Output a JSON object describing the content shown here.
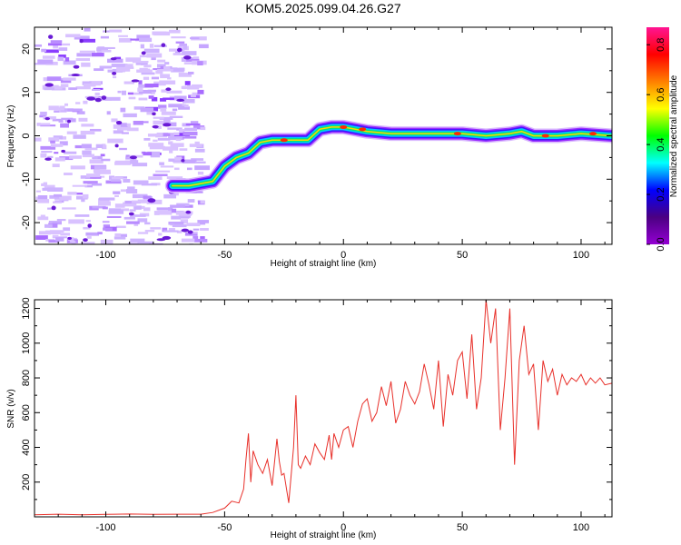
{
  "title": "KOM5.2025.099.04.26.G27",
  "chart_data": [
    {
      "type": "heatmap",
      "xlabel": "Height of straight line (km)",
      "ylabel": "Frequency (Hz)",
      "xlim": [
        -130,
        113
      ],
      "ylim": [
        -25,
        25
      ],
      "xticks": [
        -100,
        -50,
        0,
        50,
        100
      ],
      "yticks": [
        -20,
        -10,
        0,
        10,
        20
      ],
      "grid": false,
      "colorbar": {
        "label": "Normalized spectral amplitude",
        "range": [
          0,
          0.87
        ],
        "ticks": [
          0.0,
          0.2,
          0.4,
          0.6,
          0.8
        ],
        "colormap": [
          "#9400d3",
          "#4b0082",
          "#0000ff",
          "#00ffff",
          "#00ff00",
          "#ffff00",
          "#ff7f00",
          "#ff0000",
          "#ff1493"
        ]
      },
      "ridge": {
        "points": [
          {
            "x": -72,
            "y": -11.5
          },
          {
            "x": -65,
            "y": -11.5
          },
          {
            "x": -60,
            "y": -11
          },
          {
            "x": -55,
            "y": -10.5
          },
          {
            "x": -50,
            "y": -7
          },
          {
            "x": -45,
            "y": -5
          },
          {
            "x": -40,
            "y": -4
          },
          {
            "x": -35,
            "y": -1.5
          },
          {
            "x": -30,
            "y": -1
          },
          {
            "x": -25,
            "y": -1
          },
          {
            "x": -20,
            "y": -1
          },
          {
            "x": -15,
            "y": -1
          },
          {
            "x": -10,
            "y": 1.5
          },
          {
            "x": -5,
            "y": 2
          },
          {
            "x": 0,
            "y": 2
          },
          {
            "x": 5,
            "y": 1.5
          },
          {
            "x": 10,
            "y": 1
          },
          {
            "x": 20,
            "y": 0.5
          },
          {
            "x": 30,
            "y": 0.5
          },
          {
            "x": 40,
            "y": 0.5
          },
          {
            "x": 50,
            "y": 0.5
          },
          {
            "x": 60,
            "y": 0
          },
          {
            "x": 70,
            "y": 0.5
          },
          {
            "x": 75,
            "y": 1
          },
          {
            "x": 80,
            "y": 0
          },
          {
            "x": 90,
            "y": 0
          },
          {
            "x": 100,
            "y": 0.5
          },
          {
            "x": 113,
            "y": 0
          }
        ]
      }
    },
    {
      "type": "line",
      "xlabel": "Height of straight line (km)",
      "ylabel": "SNR (v/v)",
      "xlim": [
        -130,
        113
      ],
      "ylim": [
        0,
        1250
      ],
      "xticks": [
        -100,
        -50,
        0,
        50,
        100
      ],
      "yticks": [
        200,
        400,
        600,
        800,
        1000,
        1200
      ],
      "grid": false,
      "series": [
        {
          "color": "#e8302a",
          "x": [
            -130,
            -120,
            -110,
            -100,
            -90,
            -80,
            -70,
            -60,
            -55,
            -50,
            -47,
            -44,
            -42,
            -41,
            -40,
            -39,
            -38,
            -36,
            -34,
            -32,
            -30,
            -28,
            -27,
            -26,
            -25,
            -23,
            -21,
            -20,
            -19,
            -18,
            -16,
            -14,
            -12,
            -10,
            -8,
            -6,
            -5,
            -4,
            -2,
            0,
            2,
            4,
            6,
            8,
            10,
            12,
            14,
            16,
            18,
            20,
            22,
            24,
            26,
            28,
            30,
            32,
            34,
            36,
            38,
            40,
            42,
            44,
            46,
            48,
            50,
            52,
            54,
            56,
            58,
            60,
            62,
            64,
            66,
            68,
            70,
            72,
            74,
            76,
            78,
            80,
            82,
            84,
            86,
            88,
            90,
            92,
            94,
            96,
            98,
            100,
            102,
            104,
            106,
            108,
            110,
            113
          ],
          "y": [
            12,
            15,
            12,
            14,
            16,
            14,
            15,
            15,
            25,
            50,
            90,
            80,
            160,
            330,
            480,
            200,
            380,
            300,
            250,
            330,
            180,
            450,
            320,
            240,
            250,
            80,
            400,
            700,
            300,
            280,
            350,
            300,
            420,
            370,
            330,
            470,
            330,
            480,
            400,
            500,
            520,
            400,
            550,
            650,
            680,
            550,
            600,
            750,
            640,
            780,
            540,
            620,
            780,
            700,
            650,
            720,
            880,
            760,
            620,
            900,
            520,
            820,
            700,
            900,
            950,
            680,
            1050,
            620,
            800,
            1250,
            1000,
            1200,
            500,
            800,
            1200,
            300,
            900,
            1100,
            820,
            880,
            500,
            900,
            780,
            850,
            700,
            820,
            760,
            800,
            780,
            820,
            760,
            800,
            770,
            800,
            760,
            770
          ]
        }
      ]
    }
  ]
}
